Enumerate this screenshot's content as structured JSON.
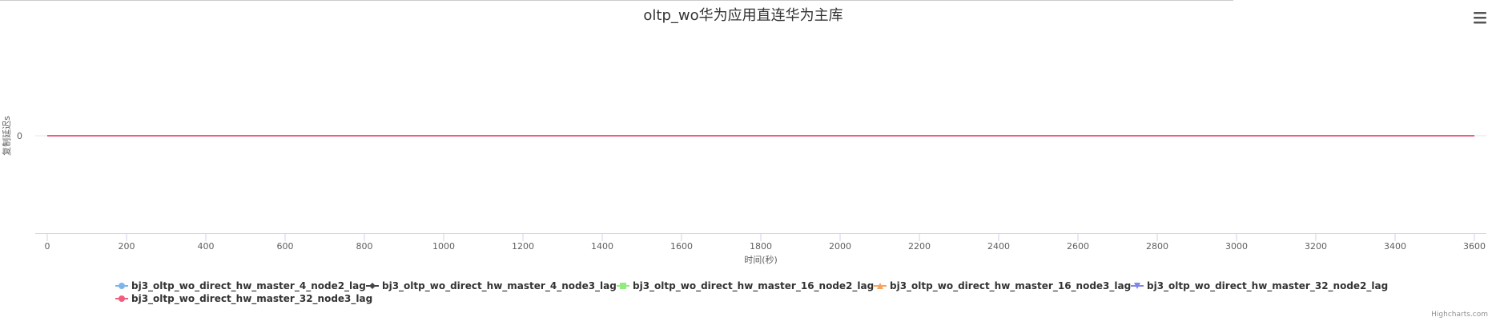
{
  "chart_data": {
    "type": "line",
    "title": "oltp_wo华为应用直连华为主库",
    "xlabel": "时间(秒)",
    "ylabel": "复制延迟s",
    "xlim": [
      0,
      3600
    ],
    "x_ticks": [
      0,
      200,
      400,
      600,
      800,
      1000,
      1200,
      1400,
      1600,
      1800,
      2000,
      2200,
      2400,
      2600,
      2800,
      3000,
      3200,
      3400,
      3600
    ],
    "y_ticks": [
      0
    ],
    "grid": true,
    "legend_position": "bottom",
    "series": [
      {
        "name": "bj3_oltp_wo_direct_hw_master_4_node2_lag",
        "color": "#7cb5ec",
        "marker": "circle",
        "x": [
          0,
          3600
        ],
        "values": [
          0,
          0
        ]
      },
      {
        "name": "bj3_oltp_wo_direct_hw_master_4_node3_lag",
        "color": "#434348",
        "marker": "diamond",
        "x": [
          0,
          3600
        ],
        "values": [
          0,
          0
        ]
      },
      {
        "name": "bj3_oltp_wo_direct_hw_master_16_node2_lag",
        "color": "#90ed7d",
        "marker": "square",
        "x": [
          0,
          3600
        ],
        "values": [
          0,
          0
        ]
      },
      {
        "name": "bj3_oltp_wo_direct_hw_master_16_node3_lag",
        "color": "#f7a35c",
        "marker": "triangle",
        "x": [
          0,
          3600
        ],
        "values": [
          0,
          0
        ]
      },
      {
        "name": "bj3_oltp_wo_direct_hw_master_32_node2_lag",
        "color": "#8085e9",
        "marker": "triangle-down",
        "x": [
          0,
          3600
        ],
        "values": [
          0,
          0
        ]
      },
      {
        "name": "bj3_oltp_wo_direct_hw_master_32_node3_lag",
        "color": "#f15c80",
        "marker": "circle",
        "x": [
          0,
          3600
        ],
        "values": [
          0,
          0
        ]
      }
    ]
  },
  "credits": "Highcharts.com",
  "menu_icon": "hamburger-menu-icon"
}
